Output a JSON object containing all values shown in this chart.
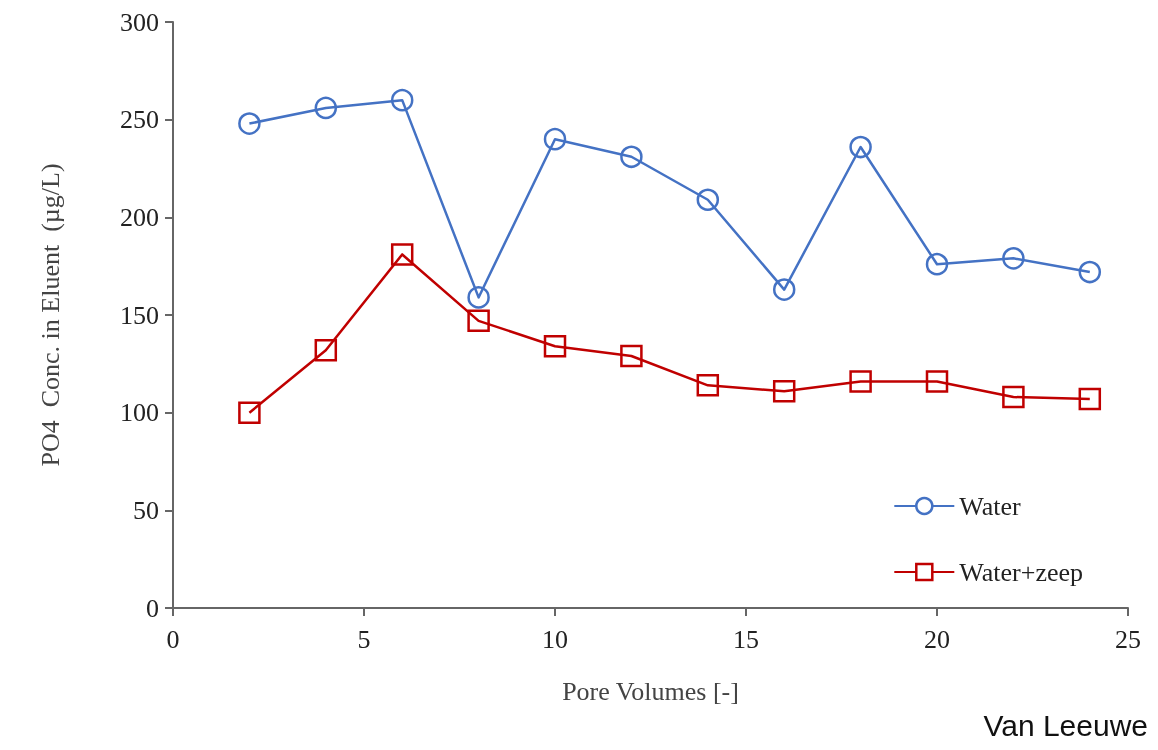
{
  "chart_data": {
    "type": "line",
    "xlabel": "Pore Volumes [-]",
    "ylabel": "PO4  Conc. in Eluent  (µg/L)",
    "x": [
      2,
      4,
      6,
      8,
      10,
      12,
      14,
      16,
      18,
      20,
      22,
      24
    ],
    "series": [
      {
        "name": "Water",
        "color": "#4472c4",
        "marker": "circle",
        "values": [
          248,
          256,
          260,
          159,
          240,
          231,
          209,
          163,
          236,
          176,
          179,
          172
        ]
      },
      {
        "name": "Water+zeep",
        "color": "#c00000",
        "marker": "square",
        "values": [
          100,
          132,
          181,
          147,
          134,
          129,
          114,
          111,
          116,
          116,
          108,
          107
        ]
      }
    ],
    "xlim": [
      0,
      25
    ],
    "xticks": [
      0,
      5,
      10,
      15,
      20,
      25
    ],
    "ylim": [
      0,
      300
    ],
    "yticks": [
      0,
      50,
      100,
      150,
      200,
      250,
      300
    ],
    "grid": false,
    "legend": "bottom right",
    "line_style": "solid",
    "annotations": [
      "Van Leeuwe"
    ]
  }
}
